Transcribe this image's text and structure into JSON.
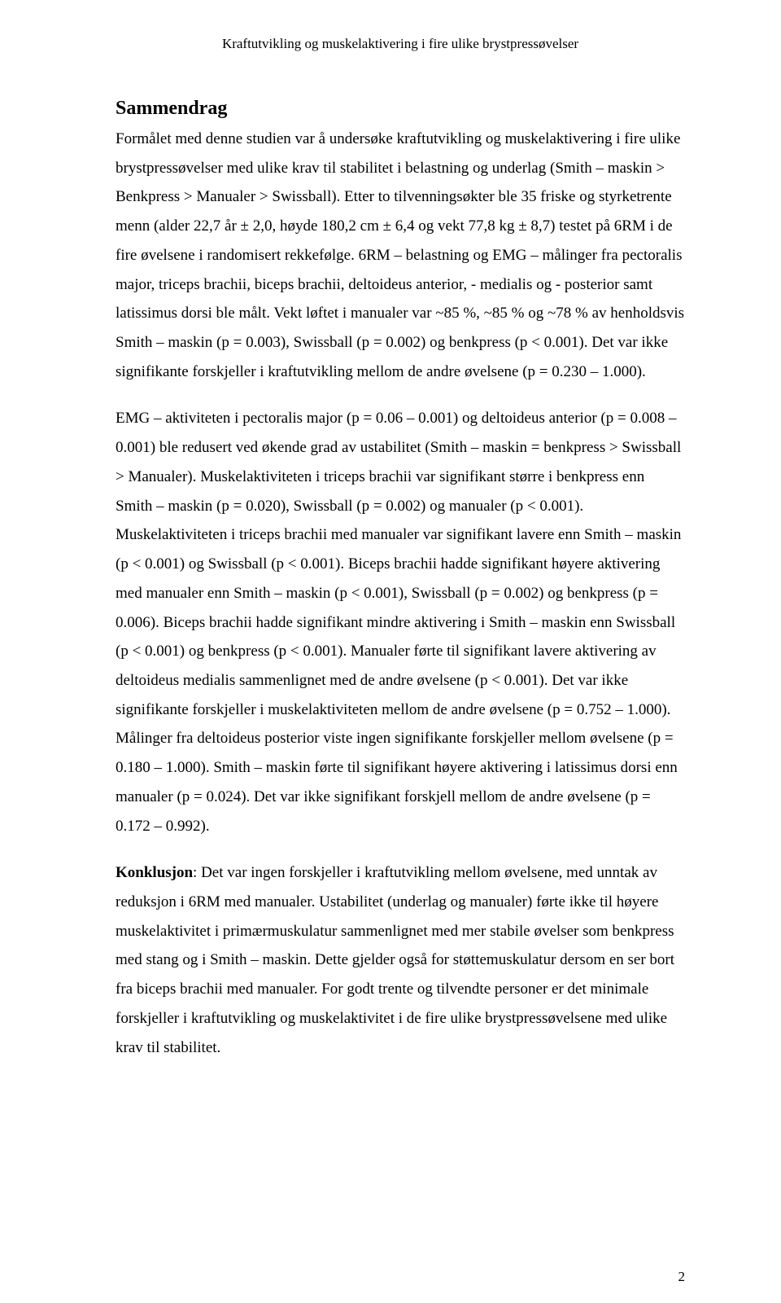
{
  "runningHead": "Kraftutvikling og muskelaktivering i fire ulike brystpressøvelser",
  "sectionTitle": "Sammendrag",
  "paragraphs": {
    "p1": "Formålet med denne studien var å undersøke kraftutvikling og muskelaktivering i fire ulike brystpressøvelser med ulike krav til stabilitet i belastning og underlag (Smith – maskin > Benkpress > Manualer > Swissball). Etter to tilvenningsøkter ble 35 friske og styrketrente menn (alder 22,7 år ± 2,0, høyde 180,2 cm ± 6,4 og vekt 77,8 kg ± 8,7) testet på 6RM i de fire øvelsene i randomisert rekkefølge. 6RM – belastning og EMG – målinger fra pectoralis major, triceps brachii, biceps brachii, deltoideus anterior, - medialis og - posterior samt latissimus dorsi ble målt. Vekt løftet i manualer var ~85 %, ~85 % og ~78 % av henholdsvis Smith – maskin (p = 0.003), Swissball (p = 0.002) og benkpress (p < 0.001). Det var ikke signifikante forskjeller i kraftutvikling mellom de andre øvelsene (p = 0.230 – 1.000).",
    "p2": "EMG – aktiviteten i pectoralis major (p = 0.06 – 0.001) og deltoideus anterior (p = 0.008 – 0.001) ble redusert ved økende grad av ustabilitet (Smith – maskin = benkpress > Swissball > Manualer). Muskelaktiviteten i triceps brachii var signifikant større i benkpress enn Smith – maskin (p = 0.020), Swissball (p = 0.002) og manualer (p < 0.001). Muskelaktiviteten i triceps brachii med manualer var signifikant lavere enn Smith – maskin (p < 0.001) og Swissball (p < 0.001). Biceps brachii hadde signifikant høyere aktivering med manualer enn Smith – maskin (p < 0.001), Swissball (p = 0.002) og benkpress (p = 0.006). Biceps brachii hadde signifikant mindre aktivering i Smith – maskin enn Swissball (p < 0.001) og benkpress (p < 0.001). Manualer førte til signifikant lavere aktivering av deltoideus medialis sammenlignet med de andre øvelsene (p < 0.001). Det var ikke signifikante forskjeller i muskelaktiviteten mellom de andre øvelsene (p = 0.752 – 1.000). Målinger fra deltoideus posterior viste ingen signifikante forskjeller mellom øvelsene (p = 0.180 – 1.000). Smith – maskin førte til signifikant høyere aktivering i latissimus dorsi enn manualer (p = 0.024). Det var ikke signifikant forskjell mellom de andre øvelsene (p = 0.172 – 0.992).",
    "p3_label": "Konklusjon",
    "p3_rest": ": Det var ingen forskjeller i kraftutvikling mellom øvelsene, med unntak av reduksjon i 6RM med manualer. Ustabilitet (underlag og manualer) førte ikke til høyere muskelaktivitet i primærmuskulatur sammenlignet med mer stabile øvelser som benkpress med stang og i Smith – maskin. Dette gjelder også for støttemuskulatur dersom en ser bort fra biceps brachii med manualer. For godt trente og tilvendte personer er det minimale forskjeller i kraftutvikling og muskelaktivitet i de fire ulike brystpressøvelsene med ulike krav til stabilitet."
  },
  "pageNumber": "2",
  "colors": {
    "text": "#000000",
    "background": "#ffffff"
  },
  "typography": {
    "fontFamily": "Times New Roman",
    "bodyFontSize": 19,
    "titleFontSize": 24,
    "headerFontSize": 17,
    "lineHeight": 1.88
  }
}
